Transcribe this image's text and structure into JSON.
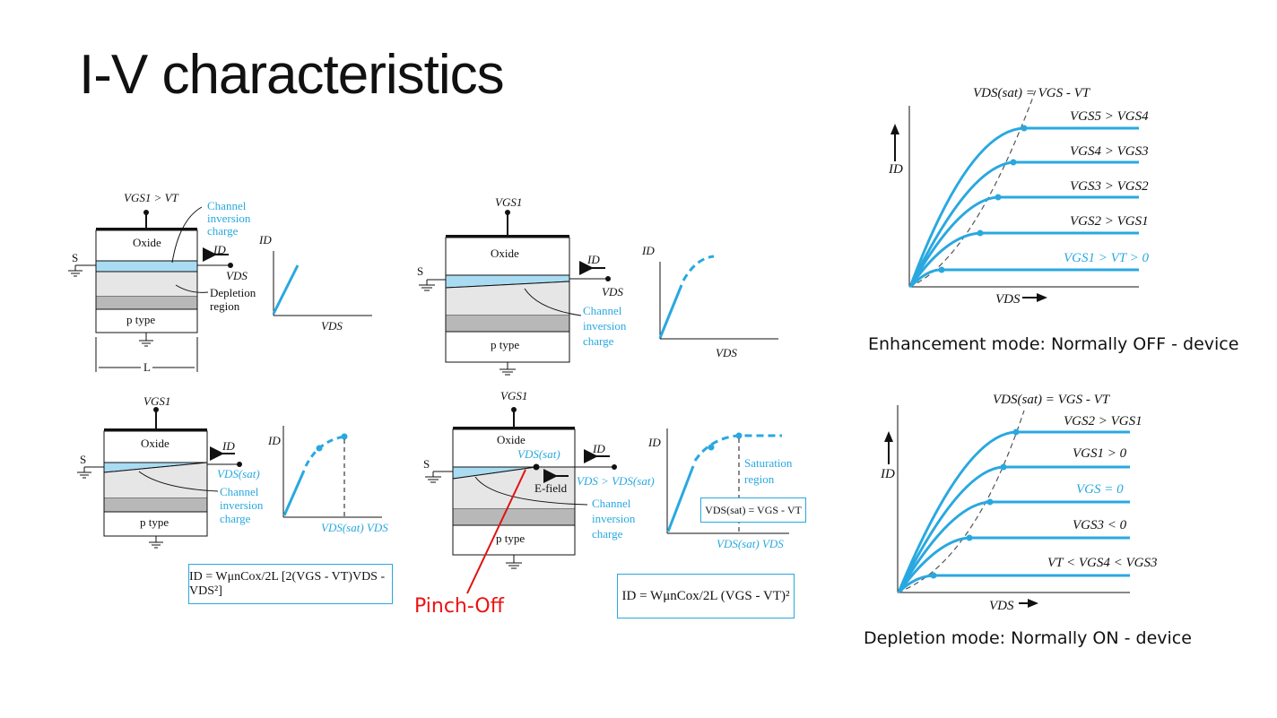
{
  "slide": {
    "title": "I-V characteristics",
    "enhancement_caption": "Enhancement mode: Normally OFF - device",
    "depletion_caption": "Depletion mode: Normally ON - device",
    "pinch_label": "Pinch-Off"
  },
  "mosfet_diagrams": {
    "oxide": "Oxide",
    "ptype": "p type",
    "source": "S",
    "length": "L",
    "gate1": "VGS1 > VT",
    "gate": "VGS1",
    "channel_charge": [
      "Channel",
      "inversion",
      "charge"
    ],
    "depletion": [
      "Depletion",
      "region"
    ],
    "id": "ID",
    "vds": "VDS",
    "vdssat": "VDS(sat)",
    "vds_gt_sat": "VDS > VDS(sat)",
    "efield": "E-field",
    "saturation": [
      "Saturation",
      "region"
    ],
    "sat_eq": "VDS(sat) = VGS - VT",
    "axis_sat": "VDS(sat) VDS",
    "linear_eq": "ID = WμnCox/2L [2(VGS - VT)VDS - VDS²]",
    "sat_current_eq": "ID = WμnCox/2L (VGS - VT)²"
  },
  "enhancement_chart": {
    "sat_label": "VDS(sat) = VGS - VT",
    "curves": [
      "VGS5 > VGS4",
      "VGS4 > VGS3",
      "VGS3 > VGS2",
      "VGS2 > VGS1",
      "VGS1 > VT > 0"
    ],
    "y_axis": "ID",
    "x_axis": "VDS"
  },
  "depletion_chart": {
    "sat_label": "VDS(sat) = VGS - VT",
    "curves": [
      "VGS2 > VGS1",
      "VGS1 > 0",
      "VGS = 0",
      "VGS3 < 0",
      "VT < VGS4 < VGS3"
    ],
    "y_axis": "ID",
    "x_axis": "VDS"
  },
  "colors": {
    "accent": "#29a8e0",
    "pinch": "#e11111",
    "oxide_channel": "#a9dcf2",
    "depletion": "#e6e6e6",
    "substrate_gray": "#b8b8b8"
  }
}
